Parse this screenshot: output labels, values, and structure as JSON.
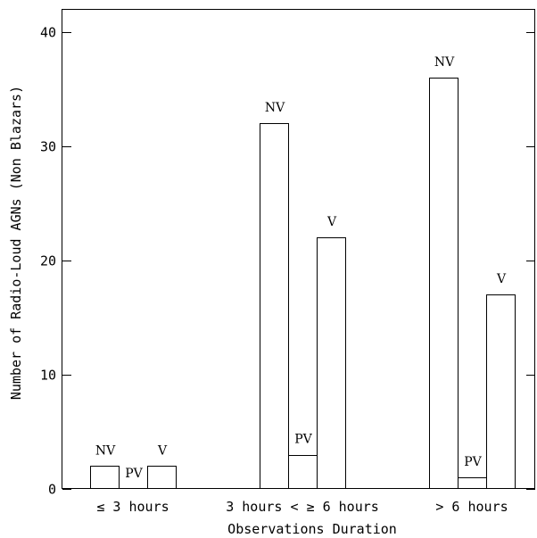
{
  "chart_data": {
    "type": "bar",
    "xlabel": "Observations Duration",
    "ylabel": "Number of Radio-Loud AGNs (Non Blazars)",
    "ylim": [
      0,
      42
    ],
    "yticks": [
      0,
      10,
      20,
      30,
      40
    ],
    "grid": false,
    "legend": "none",
    "categories": [
      "≤ 3 hours",
      "3 hours < ≥ 6 hours",
      "> 6 hours"
    ],
    "series": [
      {
        "name": "NV",
        "values": [
          2,
          32,
          36
        ]
      },
      {
        "name": "PV",
        "values": [
          0,
          3,
          1
        ]
      },
      {
        "name": "V",
        "values": [
          2,
          22,
          17
        ]
      }
    ],
    "bar_fill": "#ffffff",
    "bar_stroke": "#000000"
  }
}
